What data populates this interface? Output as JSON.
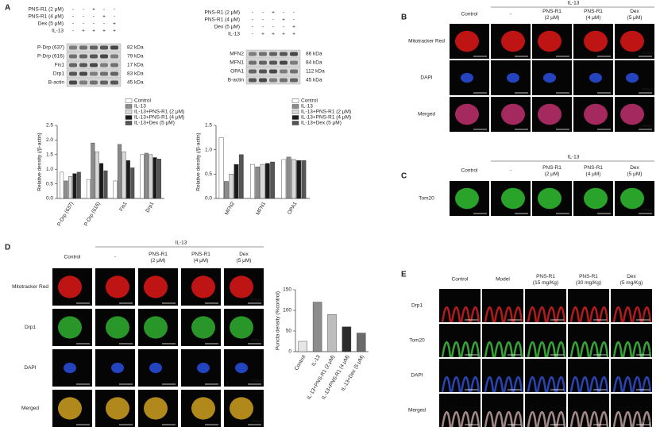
{
  "panel_a": {
    "label": "A",
    "blot_left": {
      "treatments": [
        {
          "name": "PNS-R1 (2 μM)",
          "signs": [
            "-",
            "-",
            "+",
            "-",
            "-"
          ]
        },
        {
          "name": "PNS-R1 (4 μM)",
          "signs": [
            "-",
            "-",
            "-",
            "+",
            "-"
          ]
        },
        {
          "name": "Dex (5 μM)",
          "signs": [
            "-",
            "-",
            "-",
            "-",
            "+"
          ]
        },
        {
          "name": "IL-13",
          "signs": [
            "-",
            "+",
            "+",
            "+",
            "+"
          ]
        }
      ],
      "bands": [
        {
          "name": "P-Drp (637)",
          "size": "82 kDa"
        },
        {
          "name": "P-Drp (616)",
          "size": "79 kDa"
        },
        {
          "name": "Fis1",
          "size": "17 kDa"
        },
        {
          "name": "Drp1",
          "size": "83 kDa"
        },
        {
          "name": "B-actin",
          "size": "45 kDa"
        }
      ]
    },
    "blot_right": {
      "treatments": [
        {
          "name": "PNS-R1 (2 μM)",
          "signs": [
            "-",
            "-",
            "+",
            "-",
            "-"
          ]
        },
        {
          "name": "PNS-R1 (4 μM)",
          "signs": [
            "-",
            "-",
            "-",
            "+",
            "-"
          ]
        },
        {
          "name": "Dex (5 μM)",
          "signs": [
            "-",
            "-",
            "-",
            "-",
            "+"
          ]
        },
        {
          "name": "IL-13",
          "signs": [
            "-",
            "+",
            "+",
            "+",
            "+"
          ]
        }
      ],
      "bands": [
        {
          "name": "MFN2",
          "size": "86 kDa"
        },
        {
          "name": "MFN1",
          "size": "84 kDa"
        },
        {
          "name": "OPA1",
          "size": "112 kDa"
        },
        {
          "name": "B-actin",
          "size": "45 kDa"
        }
      ]
    },
    "charts": [
      {
        "type": "bar",
        "y_label": "Relative density (/β-actin)",
        "categories": [
          "P-Drp (637)",
          "P-Drp (616)",
          "Fis1",
          "Drp1"
        ],
        "ylim": [
          0,
          2.5
        ],
        "yticks": [
          {
            "value": 0,
            "label": "0.0"
          },
          0.5,
          {
            "value": 1,
            "label": "1.0"
          },
          1.5,
          {
            "value": 2,
            "label": "2.0"
          },
          2.5
        ],
        "series": [
          {
            "name": "Control",
            "color": "#ffffff",
            "values": [
              0.9,
              0.65,
              0.6,
              1.5
            ]
          },
          {
            "name": "IL-13",
            "color": "#8c8c8c",
            "values": [
              0.6,
              1.9,
              1.85,
              1.55
            ]
          },
          {
            "name": "IL-13+PNS-R1 (2 μM)",
            "color": "#d9d9d9",
            "values": [
              0.75,
              1.6,
              1.6,
              1.5
            ]
          },
          {
            "name": "IL-13+PNS-R1 (4 μM)",
            "color": "#1a1a1a",
            "values": [
              0.85,
              1.2,
              1.3,
              1.4
            ]
          },
          {
            "name": "IL-13+Dex (5 μM)",
            "color": "#555555",
            "values": [
              0.9,
              0.95,
              1.05,
              1.35
            ]
          }
        ]
      },
      {
        "type": "bar",
        "y_label": "Relative density (/β-actin)",
        "categories": [
          "MFN2",
          "MFN1",
          "OPA1"
        ],
        "ylim": [
          0,
          1.5
        ],
        "yticks": [
          {
            "value": 0,
            "label": "0.0"
          },
          0.5,
          {
            "value": 1,
            "label": "1.0"
          },
          1.5
        ],
        "series": [
          {
            "name": "Control",
            "color": "#ffffff",
            "values": [
              1.25,
              0.7,
              0.8
            ]
          },
          {
            "name": "IL-13",
            "color": "#8c8c8c",
            "values": [
              0.35,
              0.65,
              0.85
            ]
          },
          {
            "name": "IL-13+PNS-R1 (2 μM)",
            "color": "#d9d9d9",
            "values": [
              0.5,
              0.7,
              0.8
            ]
          },
          {
            "name": "IL-13+PNS-R1 (4 μM)",
            "color": "#1a1a1a",
            "values": [
              0.7,
              0.72,
              0.78
            ]
          },
          {
            "name": "IL-13+Dex (5 μM)",
            "color": "#555555",
            "values": [
              0.9,
              0.75,
              0.78
            ]
          }
        ]
      }
    ]
  },
  "panel_b": {
    "label": "B",
    "header": "IL-13",
    "columns": [
      "Control",
      "-",
      "PNS-R1 (2 μM)",
      "PNS-R1 (4 μM)",
      "Dex (5 μM)"
    ],
    "rows": [
      {
        "name": "Mitotracker Red",
        "color": "#e01818"
      },
      {
        "name": "DAPI",
        "color": "#2a4fe0"
      },
      {
        "name": "Merged",
        "color": "#c03070"
      }
    ],
    "scale": "200μm"
  },
  "panel_c": {
    "label": "C",
    "header": "IL-13",
    "columns": [
      "Control",
      "-",
      "PNS-R1 (2 μM)",
      "PNS-R1 (4 μM)",
      "Dex (5 μM)"
    ],
    "rows": [
      {
        "name": "Tom20",
        "color": "#30c030"
      }
    ],
    "scale": "100μm"
  },
  "panel_d": {
    "label": "D",
    "header": "IL-13",
    "columns": [
      "Control",
      "-",
      "PNS-R1 (2 μM)",
      "PNS-R1 (4 μM)",
      "Dex (5 μM)"
    ],
    "rows": [
      {
        "name": "Mitotracker Red",
        "color": "#e01818"
      },
      {
        "name": "Drp1",
        "color": "#30b030"
      },
      {
        "name": "DAPI",
        "color": "#2a4fe0"
      },
      {
        "name": "Merged",
        "color": "#d0a020"
      }
    ],
    "scale": "100μm",
    "chart": {
      "type": "bar",
      "y_label": "Puncta density (%control)",
      "categories": [
        "Control",
        "IL-13",
        "IL-13+PNS-R1 (2 μM)",
        "IL-13+PNS-R1 (4 μM)",
        "IL-13+Dex (5 μM)"
      ],
      "values": [
        25,
        120,
        90,
        60,
        45
      ],
      "colors": [
        "#e6e6e6",
        "#8c8c8c",
        "#bdbdbd",
        "#2b2b2b",
        "#6a6a6a"
      ],
      "ylim": [
        0,
        150
      ],
      "yticks": [
        0,
        50,
        100,
        150
      ]
    }
  },
  "panel_e": {
    "label": "E",
    "columns": [
      "Control",
      "Model",
      "PNS-R1 (15 mg/Kg)",
      "PNS-R1 (30 mg/Kg)",
      "Dex (5 mg/Kg)"
    ],
    "rows": [
      {
        "name": "Drp1",
        "color": "#d02020"
      },
      {
        "name": "Tom20",
        "color": "#40c040"
      },
      {
        "name": "DAPI",
        "color": "#3050d0"
      },
      {
        "name": "Merged",
        "color": "#c0a0a0"
      }
    ],
    "scale": "1mm"
  }
}
